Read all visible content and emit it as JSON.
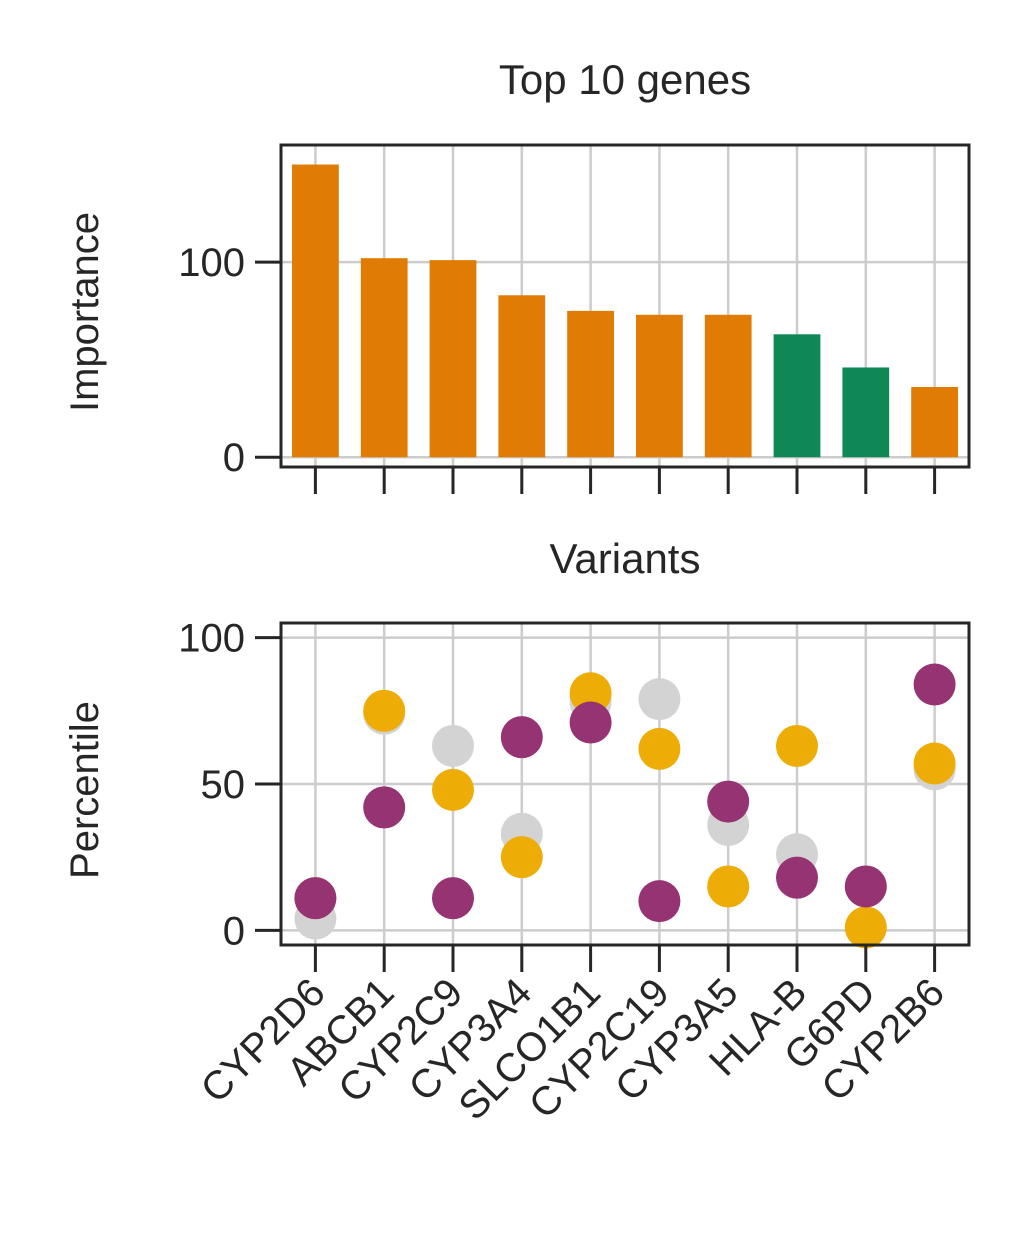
{
  "chart_data": [
    {
      "type": "bar",
      "title": "Top 10 genes",
      "xlabel": "",
      "ylabel": "Importance",
      "categories": [
        "CYP2D6",
        "ABCB1",
        "CYP2C9",
        "CYP3A4",
        "SLCO1B1",
        "CYP2C19",
        "CYP3A5",
        "HLA-B",
        "G6PD",
        "CYP2B6"
      ],
      "values": [
        150,
        102,
        101,
        83,
        75,
        73,
        73,
        63,
        46,
        36
      ],
      "bar_colors": [
        "#e07b04",
        "#e07b04",
        "#e07b04",
        "#e07b04",
        "#e07b04",
        "#e07b04",
        "#e07b04",
        "#108855",
        "#108855",
        "#e07b04"
      ],
      "yticks": [
        0,
        100
      ],
      "ylim": [
        -5,
        160
      ],
      "grid": true,
      "xticklabels_shown": false
    },
    {
      "type": "scatter",
      "title": "Variants",
      "xlabel": "",
      "ylabel": "Percentile",
      "categories": [
        "CYP2D6",
        "ABCB1",
        "CYP2C9",
        "CYP3A4",
        "SLCO1B1",
        "CYP2C19",
        "CYP3A5",
        "HLA-B",
        "G6PD",
        "CYP2B6"
      ],
      "yticks": [
        0,
        50,
        100
      ],
      "ylim": [
        -5,
        105
      ],
      "grid": true,
      "series": [
        {
          "color": "#d3d3d3",
          "values": [
            4,
            74,
            63,
            33,
            78,
            79,
            36,
            26,
            null,
            55
          ]
        },
        {
          "color": "#eeac07",
          "values": [
            11,
            75,
            48,
            25,
            81,
            62,
            15,
            63,
            1,
            57
          ]
        },
        {
          "color": "#963373",
          "values": [
            11,
            42,
            11,
            66,
            71,
            10,
            44,
            18,
            15,
            84
          ]
        }
      ]
    }
  ]
}
